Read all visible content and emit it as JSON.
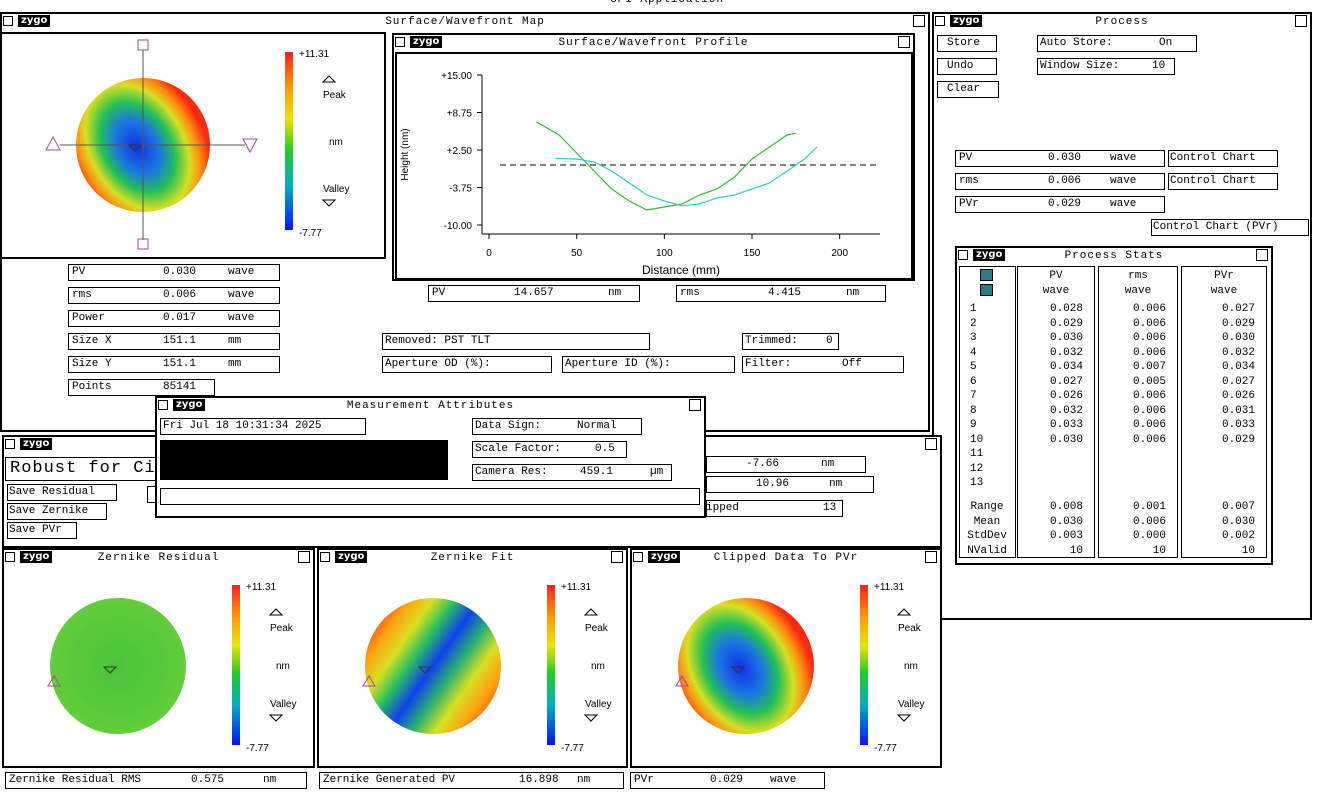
{
  "app_title": "GPI Application",
  "logo": "zygo",
  "colorbar": {
    "max": "+11.31",
    "peak": "Peak",
    "unit": "nm",
    "valley": "Valley",
    "min": "-7.77"
  },
  "map_window": {
    "title": "Surface/Wavefront Map",
    "fields": [
      [
        "PV",
        "0.030",
        "wave"
      ],
      [
        "rms",
        "0.006",
        "wave"
      ],
      [
        "Power",
        "0.017",
        "wave"
      ],
      [
        "Size X",
        "151.1",
        "mm"
      ],
      [
        "Size Y",
        "151.1",
        "mm"
      ],
      [
        "Points",
        "85141"
      ]
    ]
  },
  "profile_window": {
    "title": "Surface/Wavefront Profile",
    "fields": [
      [
        "PV",
        "14.657",
        "nm"
      ],
      [
        "rms",
        "4.415",
        "nm"
      ]
    ],
    "chart": {
      "type": "line",
      "xlabel": "Distance (mm)",
      "ylabel": "Height (nm)",
      "xlim": [
        -4,
        223
      ],
      "ylim": [
        -11.5,
        15
      ],
      "xticks": [
        0,
        50,
        100,
        150,
        200
      ],
      "yticks": [
        {
          "value": 15,
          "label": "+15.00"
        },
        {
          "value": 8.75,
          "label": "+8.75"
        },
        {
          "value": 2.5,
          "label": "+2.50"
        },
        {
          "value": -3.75,
          "label": "-3.75"
        },
        {
          "value": -10,
          "label": "-10.00"
        }
      ],
      "series": [
        {
          "color": "#33bb33",
          "x": [
            27,
            40,
            50,
            60,
            70,
            80,
            90,
            100,
            110,
            120,
            130,
            140,
            150,
            160,
            170,
            175
          ],
          "values": [
            7.2,
            5,
            2,
            -1,
            -4,
            -6,
            -7.5,
            -7,
            -6.5,
            -5,
            -4,
            -2,
            1,
            3,
            5,
            5.3
          ]
        },
        {
          "color": "#33cccc",
          "x": [
            38,
            50,
            60,
            70,
            80,
            90,
            100,
            110,
            120,
            130,
            140,
            150,
            160,
            170,
            180,
            187
          ],
          "values": [
            1.1,
            1,
            0.5,
            -1,
            -3,
            -5,
            -6,
            -6.8,
            -6.5,
            -5.5,
            -5,
            -4,
            -3,
            -1,
            1,
            3
          ]
        }
      ]
    }
  },
  "settings": {
    "removed": "Removed: PST TLT",
    "trimmed": [
      "Trimmed:",
      "0"
    ],
    "aperture_od": "Aperture OD (%):",
    "aperture_id": "Aperture ID (%):",
    "filter": [
      "Filter:",
      "Off"
    ]
  },
  "measurement": {
    "title": "Measurement Attributes",
    "date": "Fri Jul 18 10:31:34 2025",
    "fields": [
      [
        "Data Sign:",
        "Normal"
      ],
      [
        "Scale Factor:",
        "0.5"
      ],
      [
        "Camera Res:",
        "459.1",
        "µm"
      ]
    ]
  },
  "robust": {
    "title": "Robust for Ci",
    "buttons": [
      "Save Residual",
      "Save Zernike",
      "Save PVr"
    ],
    "fields": [
      [
        "-7.66",
        "nm"
      ],
      [
        "10.96",
        "nm"
      ],
      [
        "ipped",
        "13"
      ]
    ]
  },
  "process": {
    "title": "Process",
    "buttons": [
      "Store",
      "Undo",
      "Clear"
    ],
    "auto_store": [
      "Auto Store:",
      "On"
    ],
    "window_size": [
      "Window Size:",
      "10"
    ],
    "fields": [
      [
        "PV",
        "0.030",
        "wave",
        "Control Chart"
      ],
      [
        "rms",
        "0.006",
        "wave",
        "Control Chart"
      ],
      [
        "PVr",
        "0.029",
        "wave"
      ]
    ],
    "control_chart_pvr": "Control Chart (PVr)"
  },
  "stats": {
    "title": "Process Stats",
    "columns": [
      [
        "PV",
        "wave"
      ],
      [
        "rms",
        "wave"
      ],
      [
        "PVr",
        "wave"
      ]
    ],
    "rows": [
      "1",
      "2",
      "3",
      "4",
      "5",
      "6",
      "7",
      "8",
      "9",
      "10",
      "11",
      "12",
      "13"
    ],
    "values": [
      [
        "0.028",
        "0.006",
        "0.027"
      ],
      [
        "0.029",
        "0.006",
        "0.029"
      ],
      [
        "0.030",
        "0.006",
        "0.030"
      ],
      [
        "0.032",
        "0.006",
        "0.032"
      ],
      [
        "0.034",
        "0.007",
        "0.034"
      ],
      [
        "0.027",
        "0.005",
        "0.027"
      ],
      [
        "0.026",
        "0.006",
        "0.026"
      ],
      [
        "0.032",
        "0.006",
        "0.031"
      ],
      [
        "0.033",
        "0.006",
        "0.033"
      ],
      [
        "0.030",
        "0.006",
        "0.029"
      ]
    ],
    "summary_labels": [
      "Range",
      "Mean",
      "StdDev",
      "NValid"
    ],
    "summary": [
      [
        "0.008",
        "0.001",
        "0.007"
      ],
      [
        "0.030",
        "0.006",
        "0.030"
      ],
      [
        "0.003",
        "0.000",
        "0.002"
      ],
      [
        "10",
        "10",
        "10"
      ]
    ]
  },
  "bottom": [
    {
      "title": "Zernike Residual",
      "field": [
        "Zernike Residual RMS",
        "0.575",
        "nm"
      ]
    },
    {
      "title": "Zernike Fit",
      "field": [
        "Zernike Generated PV",
        "16.898",
        "nm"
      ]
    },
    {
      "title": "Clipped Data To PVr",
      "field": [
        "PVr",
        "0.029",
        "wave"
      ]
    }
  ]
}
